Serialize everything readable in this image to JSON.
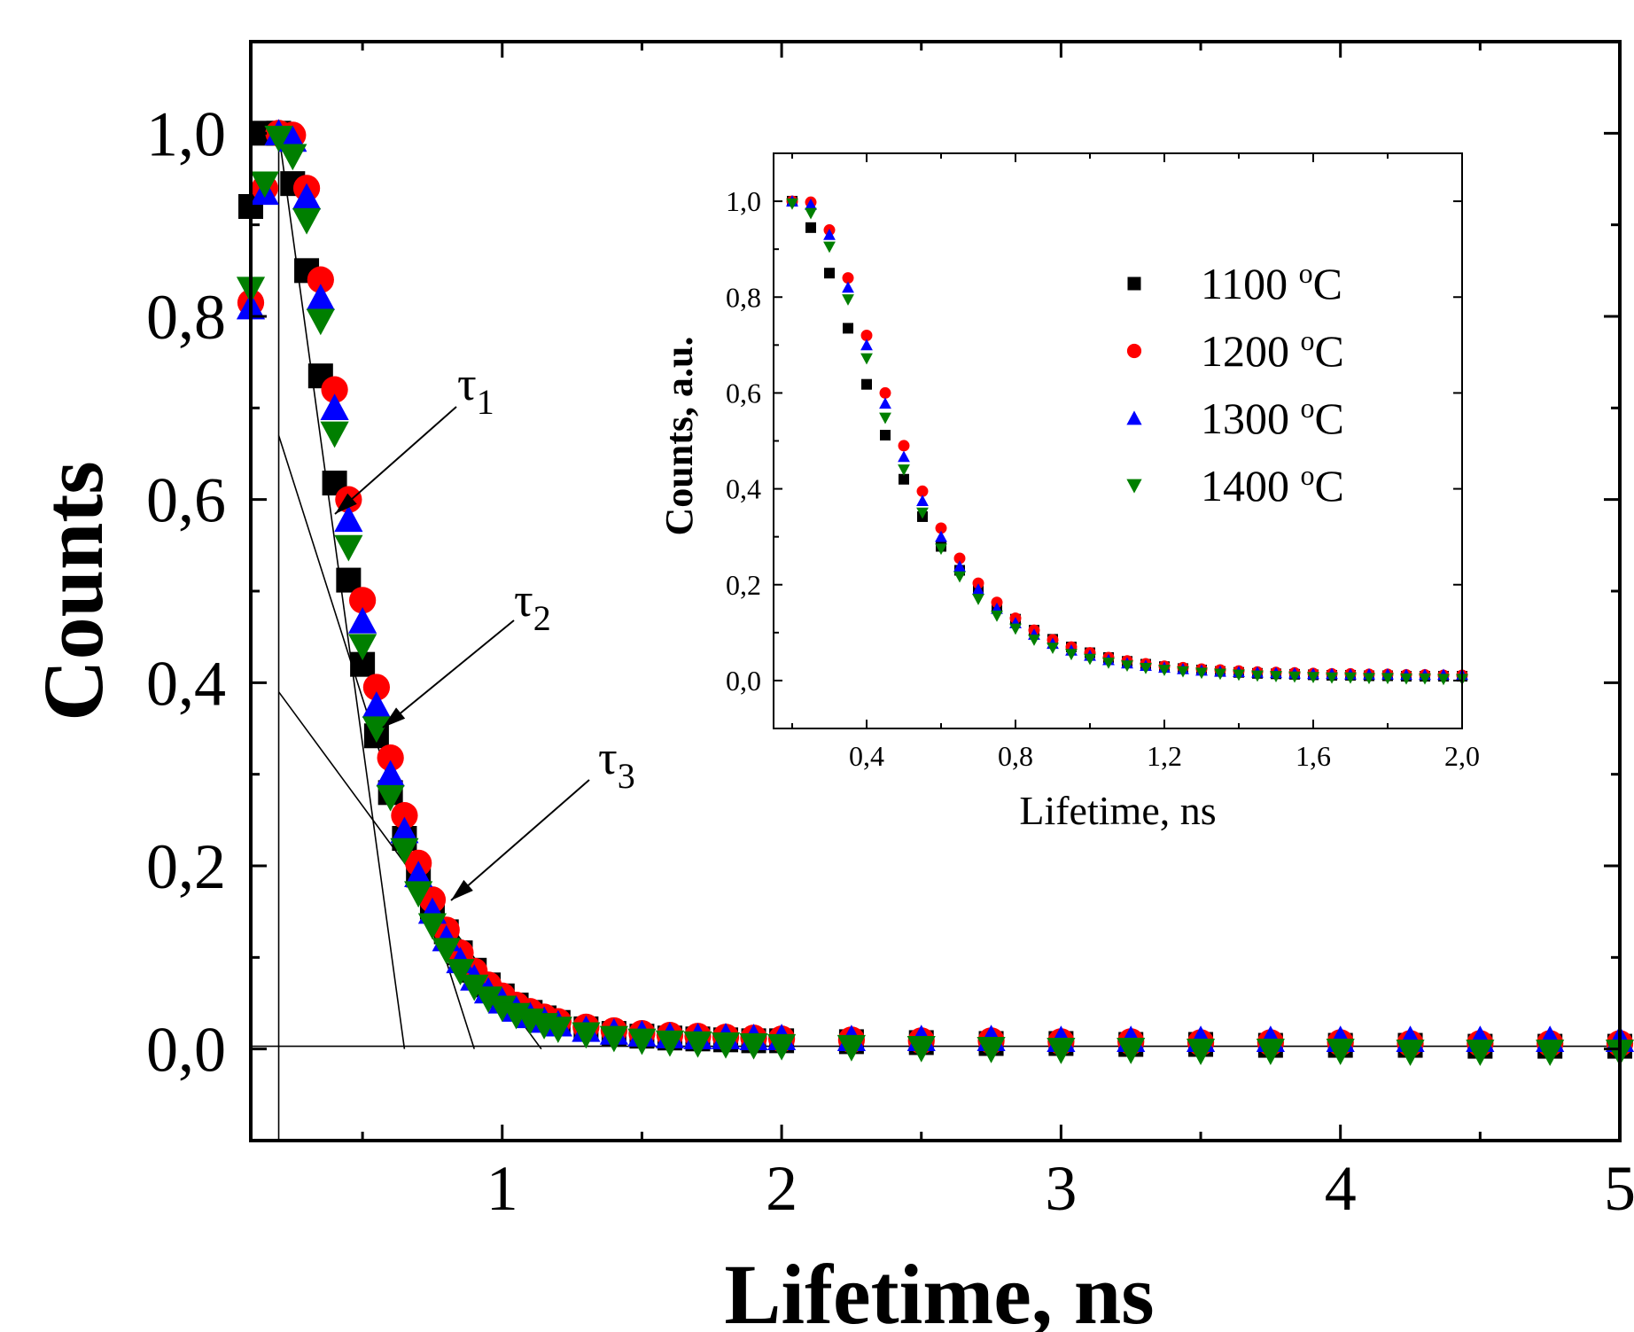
{
  "chart_data": [
    {
      "type": "scatter",
      "panel": "main",
      "xlabel": "Lifetime, ns",
      "ylabel": "Counts",
      "xlim": [
        0.1,
        5.0
      ],
      "ylim": [
        -0.1,
        1.1
      ],
      "xticks": [
        "1",
        "2",
        "3",
        "4",
        "5"
      ],
      "yticks": [
        "0,0",
        "0,2",
        "0,4",
        "0,6",
        "0,8",
        "1,0"
      ],
      "annotations": [
        {
          "label": "τ",
          "sub": "1"
        },
        {
          "label": "τ",
          "sub": "2"
        },
        {
          "label": "τ",
          "sub": "3"
        }
      ],
      "fit_lines": [
        {
          "name": "tau1",
          "x": [
            0.2,
            0.65
          ],
          "y": [
            1.0,
            0.0
          ]
        },
        {
          "name": "tau2",
          "x": [
            0.2,
            0.9
          ],
          "y": [
            0.67,
            0.0
          ]
        },
        {
          "name": "tau3",
          "x": [
            0.2,
            1.14
          ],
          "y": [
            0.39,
            0.0
          ]
        },
        {
          "name": "baseline",
          "x": [
            0.1,
            5.0
          ],
          "y": [
            0.003,
            0.003
          ]
        },
        {
          "name": "vertical",
          "x": [
            0.2,
            0.2
          ],
          "y": [
            -0.1,
            1.0
          ]
        }
      ],
      "series": [
        {
          "name": "1100 oC",
          "marker": "square",
          "color": "#000000",
          "x": [
            0.1,
            0.15,
            0.2,
            0.25,
            0.3,
            0.35,
            0.4,
            0.45,
            0.5,
            0.55,
            0.6,
            0.65,
            0.7,
            0.75,
            0.8,
            0.85,
            0.9,
            0.95,
            1.0,
            1.05,
            1.1,
            1.15,
            1.2,
            1.3,
            1.4,
            1.5,
            1.6,
            1.7,
            1.8,
            1.9,
            2.0,
            2.25,
            2.5,
            2.75,
            3.0,
            3.25,
            3.5,
            3.75,
            4.0,
            4.25,
            4.5,
            4.75,
            5.0
          ],
          "y": [
            0.92,
            1.0,
            1.0,
            0.945,
            0.85,
            0.735,
            0.618,
            0.512,
            0.42,
            0.342,
            0.28,
            0.23,
            0.19,
            0.155,
            0.128,
            0.105,
            0.086,
            0.07,
            0.058,
            0.048,
            0.04,
            0.034,
            0.029,
            0.022,
            0.017,
            0.014,
            0.012,
            0.011,
            0.01,
            0.009,
            0.009,
            0.008,
            0.007,
            0.006,
            0.006,
            0.005,
            0.005,
            0.004,
            0.004,
            0.004,
            0.003,
            0.003,
            0.003
          ]
        },
        {
          "name": "1200 oC",
          "marker": "circle",
          "color": "#ff0000",
          "x": [
            0.1,
            0.15,
            0.2,
            0.25,
            0.3,
            0.35,
            0.4,
            0.45,
            0.5,
            0.55,
            0.6,
            0.65,
            0.7,
            0.75,
            0.8,
            0.85,
            0.9,
            0.95,
            1.0,
            1.05,
            1.1,
            1.15,
            1.2,
            1.3,
            1.4,
            1.5,
            1.6,
            1.7,
            1.8,
            1.9,
            2.0,
            2.25,
            2.5,
            2.75,
            3.0,
            3.25,
            3.5,
            3.75,
            4.0,
            4.25,
            4.5,
            4.75,
            5.0
          ],
          "y": [
            0.815,
            0.94,
            1.0,
            0.998,
            0.94,
            0.84,
            0.72,
            0.6,
            0.49,
            0.395,
            0.318,
            0.255,
            0.203,
            0.163,
            0.13,
            0.105,
            0.085,
            0.07,
            0.058,
            0.048,
            0.041,
            0.035,
            0.03,
            0.024,
            0.02,
            0.017,
            0.015,
            0.014,
            0.013,
            0.012,
            0.011,
            0.01,
            0.009,
            0.009,
            0.008,
            0.008,
            0.007,
            0.007,
            0.007,
            0.006,
            0.006,
            0.006,
            0.006
          ]
        },
        {
          "name": "1300 oC",
          "marker": "triangle-up",
          "color": "#0000ff",
          "x": [
            0.1,
            0.15,
            0.2,
            0.25,
            0.3,
            0.35,
            0.4,
            0.45,
            0.5,
            0.55,
            0.6,
            0.65,
            0.7,
            0.75,
            0.8,
            0.85,
            0.9,
            0.95,
            1.0,
            1.05,
            1.1,
            1.15,
            1.2,
            1.3,
            1.4,
            1.5,
            1.6,
            1.7,
            1.8,
            1.9,
            2.0,
            2.25,
            2.5,
            2.75,
            3.0,
            3.25,
            3.5,
            3.75,
            4.0,
            4.25,
            4.5,
            4.75,
            5.0
          ],
          "y": [
            0.81,
            0.935,
            1.0,
            0.993,
            0.93,
            0.82,
            0.7,
            0.578,
            0.467,
            0.375,
            0.3,
            0.238,
            0.19,
            0.15,
            0.12,
            0.096,
            0.077,
            0.063,
            0.052,
            0.043,
            0.036,
            0.031,
            0.027,
            0.021,
            0.018,
            0.016,
            0.014,
            0.013,
            0.013,
            0.012,
            0.012,
            0.011,
            0.011,
            0.011,
            0.01,
            0.01,
            0.01,
            0.01,
            0.01,
            0.01,
            0.01,
            0.01,
            0.01
          ]
        },
        {
          "name": "1400 oC",
          "marker": "triangle-down",
          "color": "#007f00",
          "x": [
            0.1,
            0.15,
            0.2,
            0.25,
            0.3,
            0.35,
            0.4,
            0.45,
            0.5,
            0.55,
            0.6,
            0.65,
            0.7,
            0.75,
            0.8,
            0.85,
            0.9,
            0.95,
            1.0,
            1.05,
            1.1,
            1.15,
            1.2,
            1.3,
            1.4,
            1.5,
            1.6,
            1.7,
            1.8,
            1.9,
            2.0,
            2.25,
            2.5,
            2.75,
            3.0,
            3.25,
            3.5,
            3.75,
            4.0,
            4.25,
            4.5,
            4.75,
            5.0
          ],
          "y": [
            0.83,
            0.945,
            0.995,
            0.975,
            0.905,
            0.795,
            0.672,
            0.548,
            0.44,
            0.35,
            0.275,
            0.217,
            0.17,
            0.135,
            0.108,
            0.085,
            0.068,
            0.055,
            0.045,
            0.037,
            0.031,
            0.026,
            0.022,
            0.016,
            0.012,
            0.009,
            0.007,
            0.006,
            0.005,
            0.004,
            0.003,
            0.002,
            0.001,
            0.0,
            -0.001,
            -0.001,
            -0.002,
            -0.002,
            -0.002,
            -0.003,
            -0.003,
            -0.003,
            -0.003
          ]
        }
      ]
    },
    {
      "type": "scatter",
      "panel": "inset",
      "xlabel": "Lifetime, ns",
      "ylabel": "Counts, a.u.",
      "xlim": [
        0.15,
        2.0
      ],
      "ylim": [
        -0.1,
        1.1
      ],
      "xticks": [
        "0,4",
        "0,8",
        "1,2",
        "1,6",
        "2,0"
      ],
      "yticks": [
        "0,0",
        "0,2",
        "0,4",
        "0,6",
        "0,8",
        "1,0"
      ],
      "legend": {
        "position": "top-right",
        "entries": [
          "1100 oC",
          "1200 oC",
          "1300 oC",
          "1400 oC"
        ]
      },
      "series": [
        {
          "name": "1100 oC",
          "marker": "square",
          "color": "#000000",
          "x": [
            0.2,
            0.25,
            0.3,
            0.35,
            0.4,
            0.45,
            0.5,
            0.55,
            0.6,
            0.65,
            0.7,
            0.75,
            0.8,
            0.85,
            0.9,
            0.95,
            1.0,
            1.05,
            1.1,
            1.15,
            1.2,
            1.25,
            1.3,
            1.35,
            1.4,
            1.45,
            1.5,
            1.55,
            1.6,
            1.65,
            1.7,
            1.75,
            1.8,
            1.85,
            1.9,
            1.95,
            2.0
          ],
          "y": [
            1.0,
            0.945,
            0.85,
            0.735,
            0.618,
            0.512,
            0.42,
            0.342,
            0.28,
            0.23,
            0.19,
            0.155,
            0.128,
            0.105,
            0.086,
            0.07,
            0.058,
            0.048,
            0.04,
            0.034,
            0.029,
            0.025,
            0.022,
            0.019,
            0.017,
            0.015,
            0.014,
            0.013,
            0.012,
            0.011,
            0.011,
            0.01,
            0.01,
            0.009,
            0.009,
            0.009,
            0.009
          ]
        },
        {
          "name": "1200 oC",
          "marker": "circle",
          "color": "#ff0000",
          "x": [
            0.2,
            0.25,
            0.3,
            0.35,
            0.4,
            0.45,
            0.5,
            0.55,
            0.6,
            0.65,
            0.7,
            0.75,
            0.8,
            0.85,
            0.9,
            0.95,
            1.0,
            1.05,
            1.1,
            1.15,
            1.2,
            1.25,
            1.3,
            1.35,
            1.4,
            1.45,
            1.5,
            1.55,
            1.6,
            1.65,
            1.7,
            1.75,
            1.8,
            1.85,
            1.9,
            1.95,
            2.0
          ],
          "y": [
            1.0,
            0.998,
            0.94,
            0.84,
            0.72,
            0.6,
            0.49,
            0.395,
            0.318,
            0.255,
            0.203,
            0.163,
            0.13,
            0.105,
            0.085,
            0.07,
            0.058,
            0.048,
            0.041,
            0.035,
            0.03,
            0.027,
            0.024,
            0.022,
            0.02,
            0.018,
            0.017,
            0.016,
            0.015,
            0.014,
            0.014,
            0.013,
            0.013,
            0.012,
            0.012,
            0.011,
            0.011
          ]
        },
        {
          "name": "1300 oC",
          "marker": "triangle-up",
          "color": "#0000ff",
          "x": [
            0.2,
            0.25,
            0.3,
            0.35,
            0.4,
            0.45,
            0.5,
            0.55,
            0.6,
            0.65,
            0.7,
            0.75,
            0.8,
            0.85,
            0.9,
            0.95,
            1.0,
            1.05,
            1.1,
            1.15,
            1.2,
            1.25,
            1.3,
            1.35,
            1.4,
            1.45,
            1.5,
            1.55,
            1.6,
            1.65,
            1.7,
            1.75,
            1.8,
            1.85,
            1.9,
            1.95,
            2.0
          ],
          "y": [
            1.0,
            0.993,
            0.93,
            0.82,
            0.7,
            0.578,
            0.467,
            0.375,
            0.3,
            0.238,
            0.19,
            0.15,
            0.12,
            0.096,
            0.077,
            0.063,
            0.052,
            0.043,
            0.036,
            0.031,
            0.027,
            0.024,
            0.021,
            0.019,
            0.018,
            0.017,
            0.016,
            0.015,
            0.014,
            0.014,
            0.013,
            0.013,
            0.013,
            0.012,
            0.012,
            0.012,
            0.012
          ]
        },
        {
          "name": "1400 oC",
          "marker": "triangle-down",
          "color": "#007f00",
          "x": [
            0.2,
            0.25,
            0.3,
            0.35,
            0.4,
            0.45,
            0.5,
            0.55,
            0.6,
            0.65,
            0.7,
            0.75,
            0.8,
            0.85,
            0.9,
            0.95,
            1.0,
            1.05,
            1.1,
            1.15,
            1.2,
            1.25,
            1.3,
            1.35,
            1.4,
            1.45,
            1.5,
            1.55,
            1.6,
            1.65,
            1.7,
            1.75,
            1.8,
            1.85,
            1.9,
            1.95,
            2.0
          ],
          "y": [
            0.995,
            0.975,
            0.905,
            0.795,
            0.672,
            0.548,
            0.44,
            0.35,
            0.275,
            0.217,
            0.17,
            0.135,
            0.108,
            0.085,
            0.068,
            0.055,
            0.045,
            0.037,
            0.031,
            0.026,
            0.022,
            0.019,
            0.016,
            0.014,
            0.012,
            0.01,
            0.009,
            0.008,
            0.007,
            0.006,
            0.006,
            0.005,
            0.005,
            0.004,
            0.004,
            0.003,
            0.003
          ]
        }
      ]
    }
  ]
}
